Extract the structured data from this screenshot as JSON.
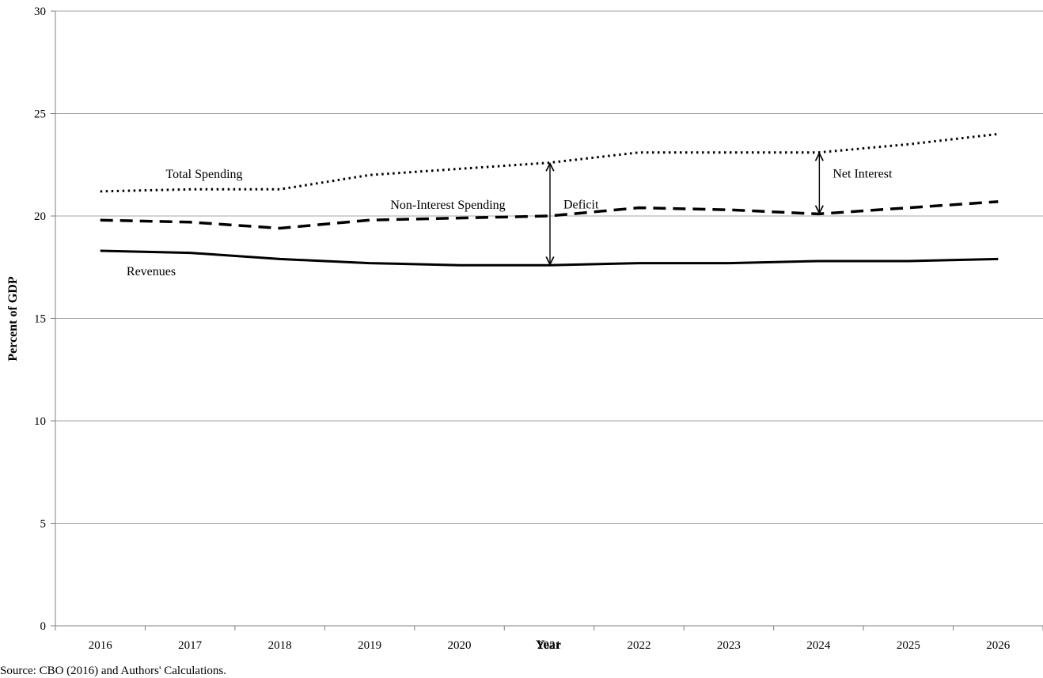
{
  "chart_data": {
    "type": "line",
    "x": [
      "2016",
      "2017",
      "2018",
      "2019",
      "2020",
      "2021",
      "2022",
      "2023",
      "2024",
      "2025",
      "2026"
    ],
    "series": [
      {
        "name": "Total Spending",
        "style": "dotted",
        "values": [
          21.2,
          21.3,
          21.3,
          22.0,
          22.3,
          22.6,
          23.1,
          23.1,
          23.1,
          23.5,
          24.0
        ]
      },
      {
        "name": "Non-Interest Spending",
        "style": "dashed",
        "values": [
          19.8,
          19.7,
          19.4,
          19.8,
          19.9,
          20.0,
          20.4,
          20.3,
          20.1,
          20.4,
          20.7
        ]
      },
      {
        "name": "Revenues",
        "style": "solid",
        "values": [
          18.3,
          18.2,
          17.9,
          17.7,
          17.6,
          17.6,
          17.7,
          17.7,
          17.8,
          17.8,
          17.9
        ]
      }
    ],
    "xlabel": "Year",
    "ylabel": "Percent of GDP",
    "ylim": [
      0,
      30
    ],
    "yticks": [
      "0",
      "5",
      "10",
      "15",
      "20",
      "25",
      "30"
    ],
    "grid": "horizontal",
    "legend": "none",
    "annotations": [
      {
        "label": "Deficit",
        "year": "2021",
        "from": 17.6,
        "to": 22.6
      },
      {
        "label": "Net Interest",
        "year": "2024",
        "from": 20.1,
        "to": 23.1
      }
    ],
    "colors": {
      "lines": "#000000",
      "grid": "#a6a6a6"
    }
  },
  "source_note": "Source: CBO (2016) and Authors' Calculations."
}
